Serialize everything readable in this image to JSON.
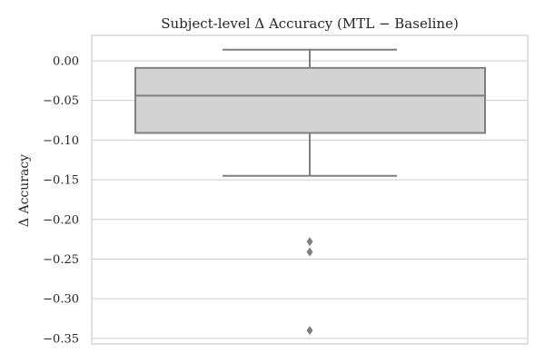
{
  "chart_data": {
    "type": "box",
    "title": "Subject-level Δ Accuracy (MTL − Baseline)",
    "xlabel": "",
    "ylabel": "Δ Accuracy",
    "ylim": [
      -0.357,
      0.032
    ],
    "yticks": [
      0.0,
      -0.05,
      -0.1,
      -0.15,
      -0.2,
      -0.25,
      -0.3,
      -0.35
    ],
    "ytick_labels": [
      "0.00",
      "−0.05",
      "−0.10",
      "−0.15",
      "−0.20",
      "−0.25",
      "−0.30",
      "−0.35"
    ],
    "grid": "horizontal",
    "box": {
      "whisker_high": 0.014,
      "q3": -0.009,
      "median": -0.044,
      "q1": -0.091,
      "whisker_low": -0.145,
      "outliers": [
        -0.228,
        -0.241,
        -0.34
      ]
    },
    "colors": {
      "box_fill": "#d3d3d3",
      "box_line": "#7f7f7f",
      "grid": "#cccccc"
    }
  }
}
